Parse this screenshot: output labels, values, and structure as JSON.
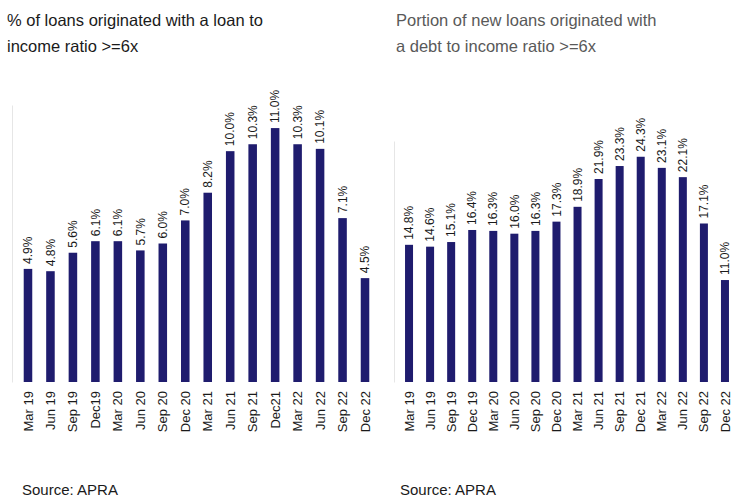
{
  "chart_data": [
    {
      "type": "bar",
      "title": "% of loans originated with a loan to income ratio >=6x",
      "source": "Source: APRA",
      "categories": [
        "Mar 19",
        "Jun 19",
        "Sep 19",
        "Dec19",
        "Mar 20",
        "Jun 20",
        "Sep 20",
        "Dec 20",
        "Mar 21",
        "Jun 21",
        "Sep 21",
        "Dec21",
        "Mar 22",
        "Jun 22",
        "Sep 22",
        "Dec 22"
      ],
      "values": [
        4.9,
        4.8,
        5.6,
        6.1,
        6.1,
        5.7,
        6.0,
        7.0,
        8.2,
        10.0,
        10.3,
        11.0,
        10.3,
        10.1,
        7.1,
        4.5
      ],
      "value_labels": [
        "4.9%",
        "4.8%",
        "5.6%",
        "6.1%",
        "6.1%",
        "5.7%",
        "6.0%",
        "7.0%",
        "8.2%",
        "10.0%",
        "10.3%",
        "11.0%",
        "10.3%",
        "10.1%",
        "7.1%",
        "4.5%"
      ],
      "color": "#1f1c6e",
      "ylim": [
        0,
        12
      ],
      "data_labels": true,
      "tick_labels": "x",
      "grid": false
    },
    {
      "type": "bar",
      "title": "Portion of new loans originated with a debt to income ratio >=6x",
      "source": "Source: APRA",
      "categories": [
        "Mar 19",
        "Jun 19",
        "Sep 19",
        "Dec 19",
        "Mar 20",
        "Jun 20",
        "Sep 20",
        "Dec 20",
        "Mar 21",
        "Jun 21",
        "Sep 21",
        "Dec 21",
        "Mar 22",
        "Jun 22",
        "Sep 22",
        "Dec 22"
      ],
      "values": [
        14.8,
        14.6,
        15.1,
        16.4,
        16.3,
        16.0,
        16.3,
        17.3,
        18.9,
        21.9,
        23.3,
        24.3,
        23.1,
        22.1,
        17.1,
        11.0
      ],
      "value_labels": [
        "14.8%",
        "14.6%",
        "15.1%",
        "16.4%",
        "16.3%",
        "16.0%",
        "16.3%",
        "17.3%",
        "18.9%",
        "21.9%",
        "23.3%",
        "24.3%",
        "23.1%",
        "22.1%",
        "17.1%",
        "11.0%"
      ],
      "color": "#1f1c6e",
      "ylim": [
        0,
        26
      ],
      "data_labels": true,
      "tick_labels": "x",
      "grid": false
    }
  ]
}
